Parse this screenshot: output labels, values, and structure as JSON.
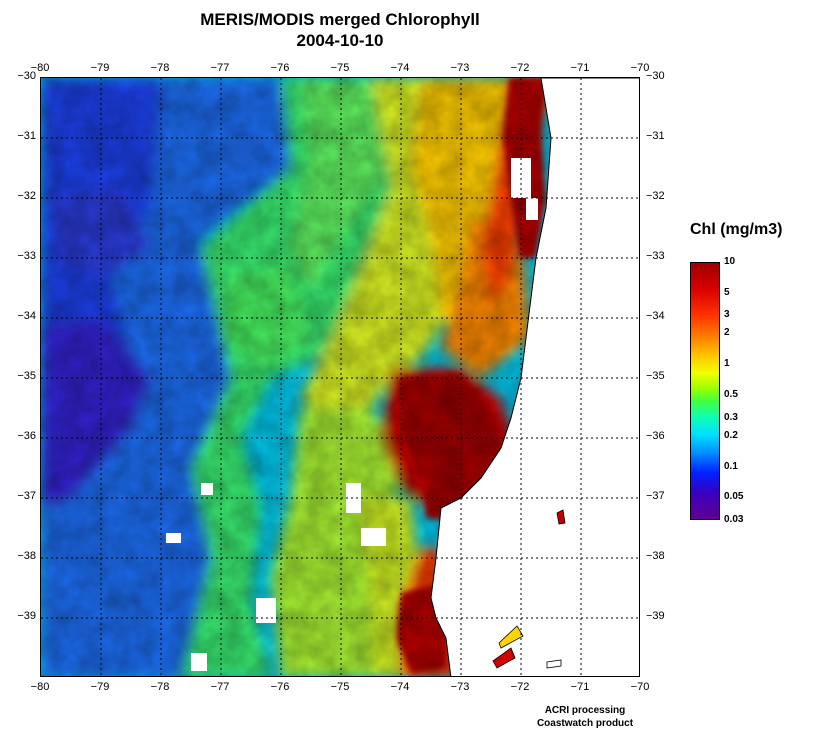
{
  "title_line1": "MERIS/MODIS merged Chlorophyll",
  "title_line2": "2004-10-10",
  "axes": {
    "lon_ticks": [
      "−80",
      "−79",
      "−78",
      "−77",
      "−76",
      "−75",
      "−74",
      "−73",
      "−72",
      "−71",
      "−70"
    ],
    "lat_ticks": [
      "−30",
      "−31",
      "−32",
      "−33",
      "−34",
      "−35",
      "−36",
      "−37",
      "−38",
      "−39"
    ],
    "lon_range": [
      -80,
      -70
    ],
    "lat_range": [
      -30,
      -40
    ],
    "grid": "dotted"
  },
  "legend": {
    "title": "Chl (mg/m3)",
    "labels": [
      "10",
      "5",
      "3",
      "2",
      "1",
      "0.5",
      "0.3",
      "0.2",
      "0.1",
      "0.05",
      "0.03"
    ],
    "scale": "log",
    "range": [
      0.03,
      10
    ],
    "colors": [
      "#a00000",
      "#ff2000",
      "#ffa000",
      "#f0ff00",
      "#40ff40",
      "#00e0ff",
      "#0020ff",
      "#600090"
    ]
  },
  "footer_line1": "ACRI processing",
  "footer_line2": "Coastwatch product"
}
